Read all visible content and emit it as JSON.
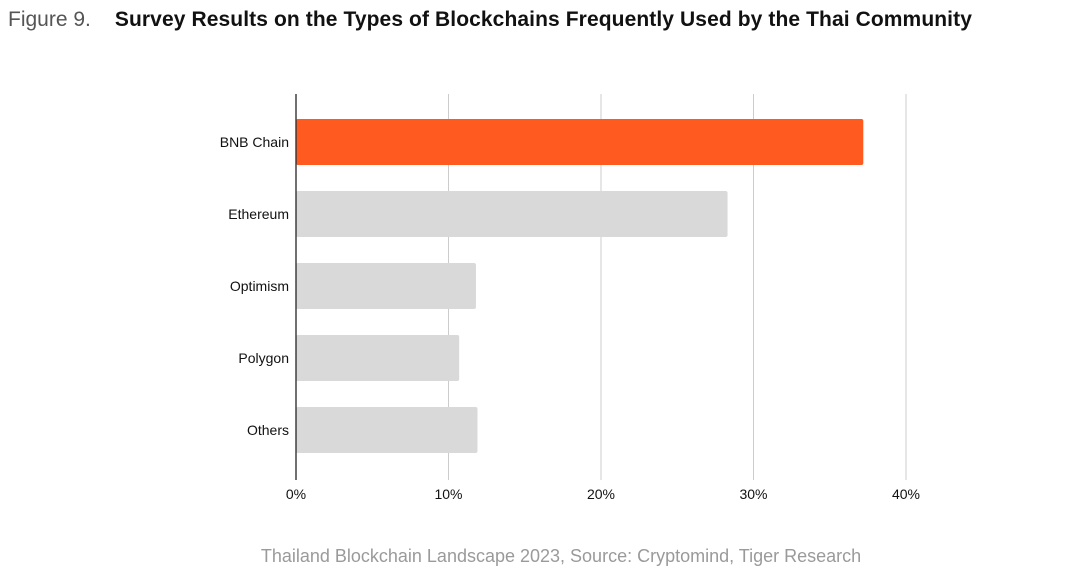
{
  "header": {
    "figure_label": "Figure 9.",
    "title": "Survey Results on the Types of Blockchains Frequently Used by the Thai Community"
  },
  "caption": "Thailand Blockchain Landscape 2023, Source: Cryptomind, Tiger Research",
  "chart_data": {
    "type": "bar",
    "orientation": "horizontal",
    "categories": [
      "BNB Chain",
      "Ethereum",
      "Optimism",
      "Polygon",
      "Others"
    ],
    "values": [
      37.2,
      28.3,
      11.8,
      10.7,
      11.9
    ],
    "xlim": [
      0,
      40
    ],
    "xticks": [
      0,
      10,
      20,
      30,
      40
    ],
    "xtick_labels": [
      "0%",
      "10%",
      "20%",
      "30%",
      "40%"
    ],
    "grid": true,
    "highlight_index": 0,
    "highlight_color": "#ff5a1f",
    "bar_color": "#d9d9d9",
    "grid_color": "#cccccc",
    "axis_color": "#333333"
  }
}
